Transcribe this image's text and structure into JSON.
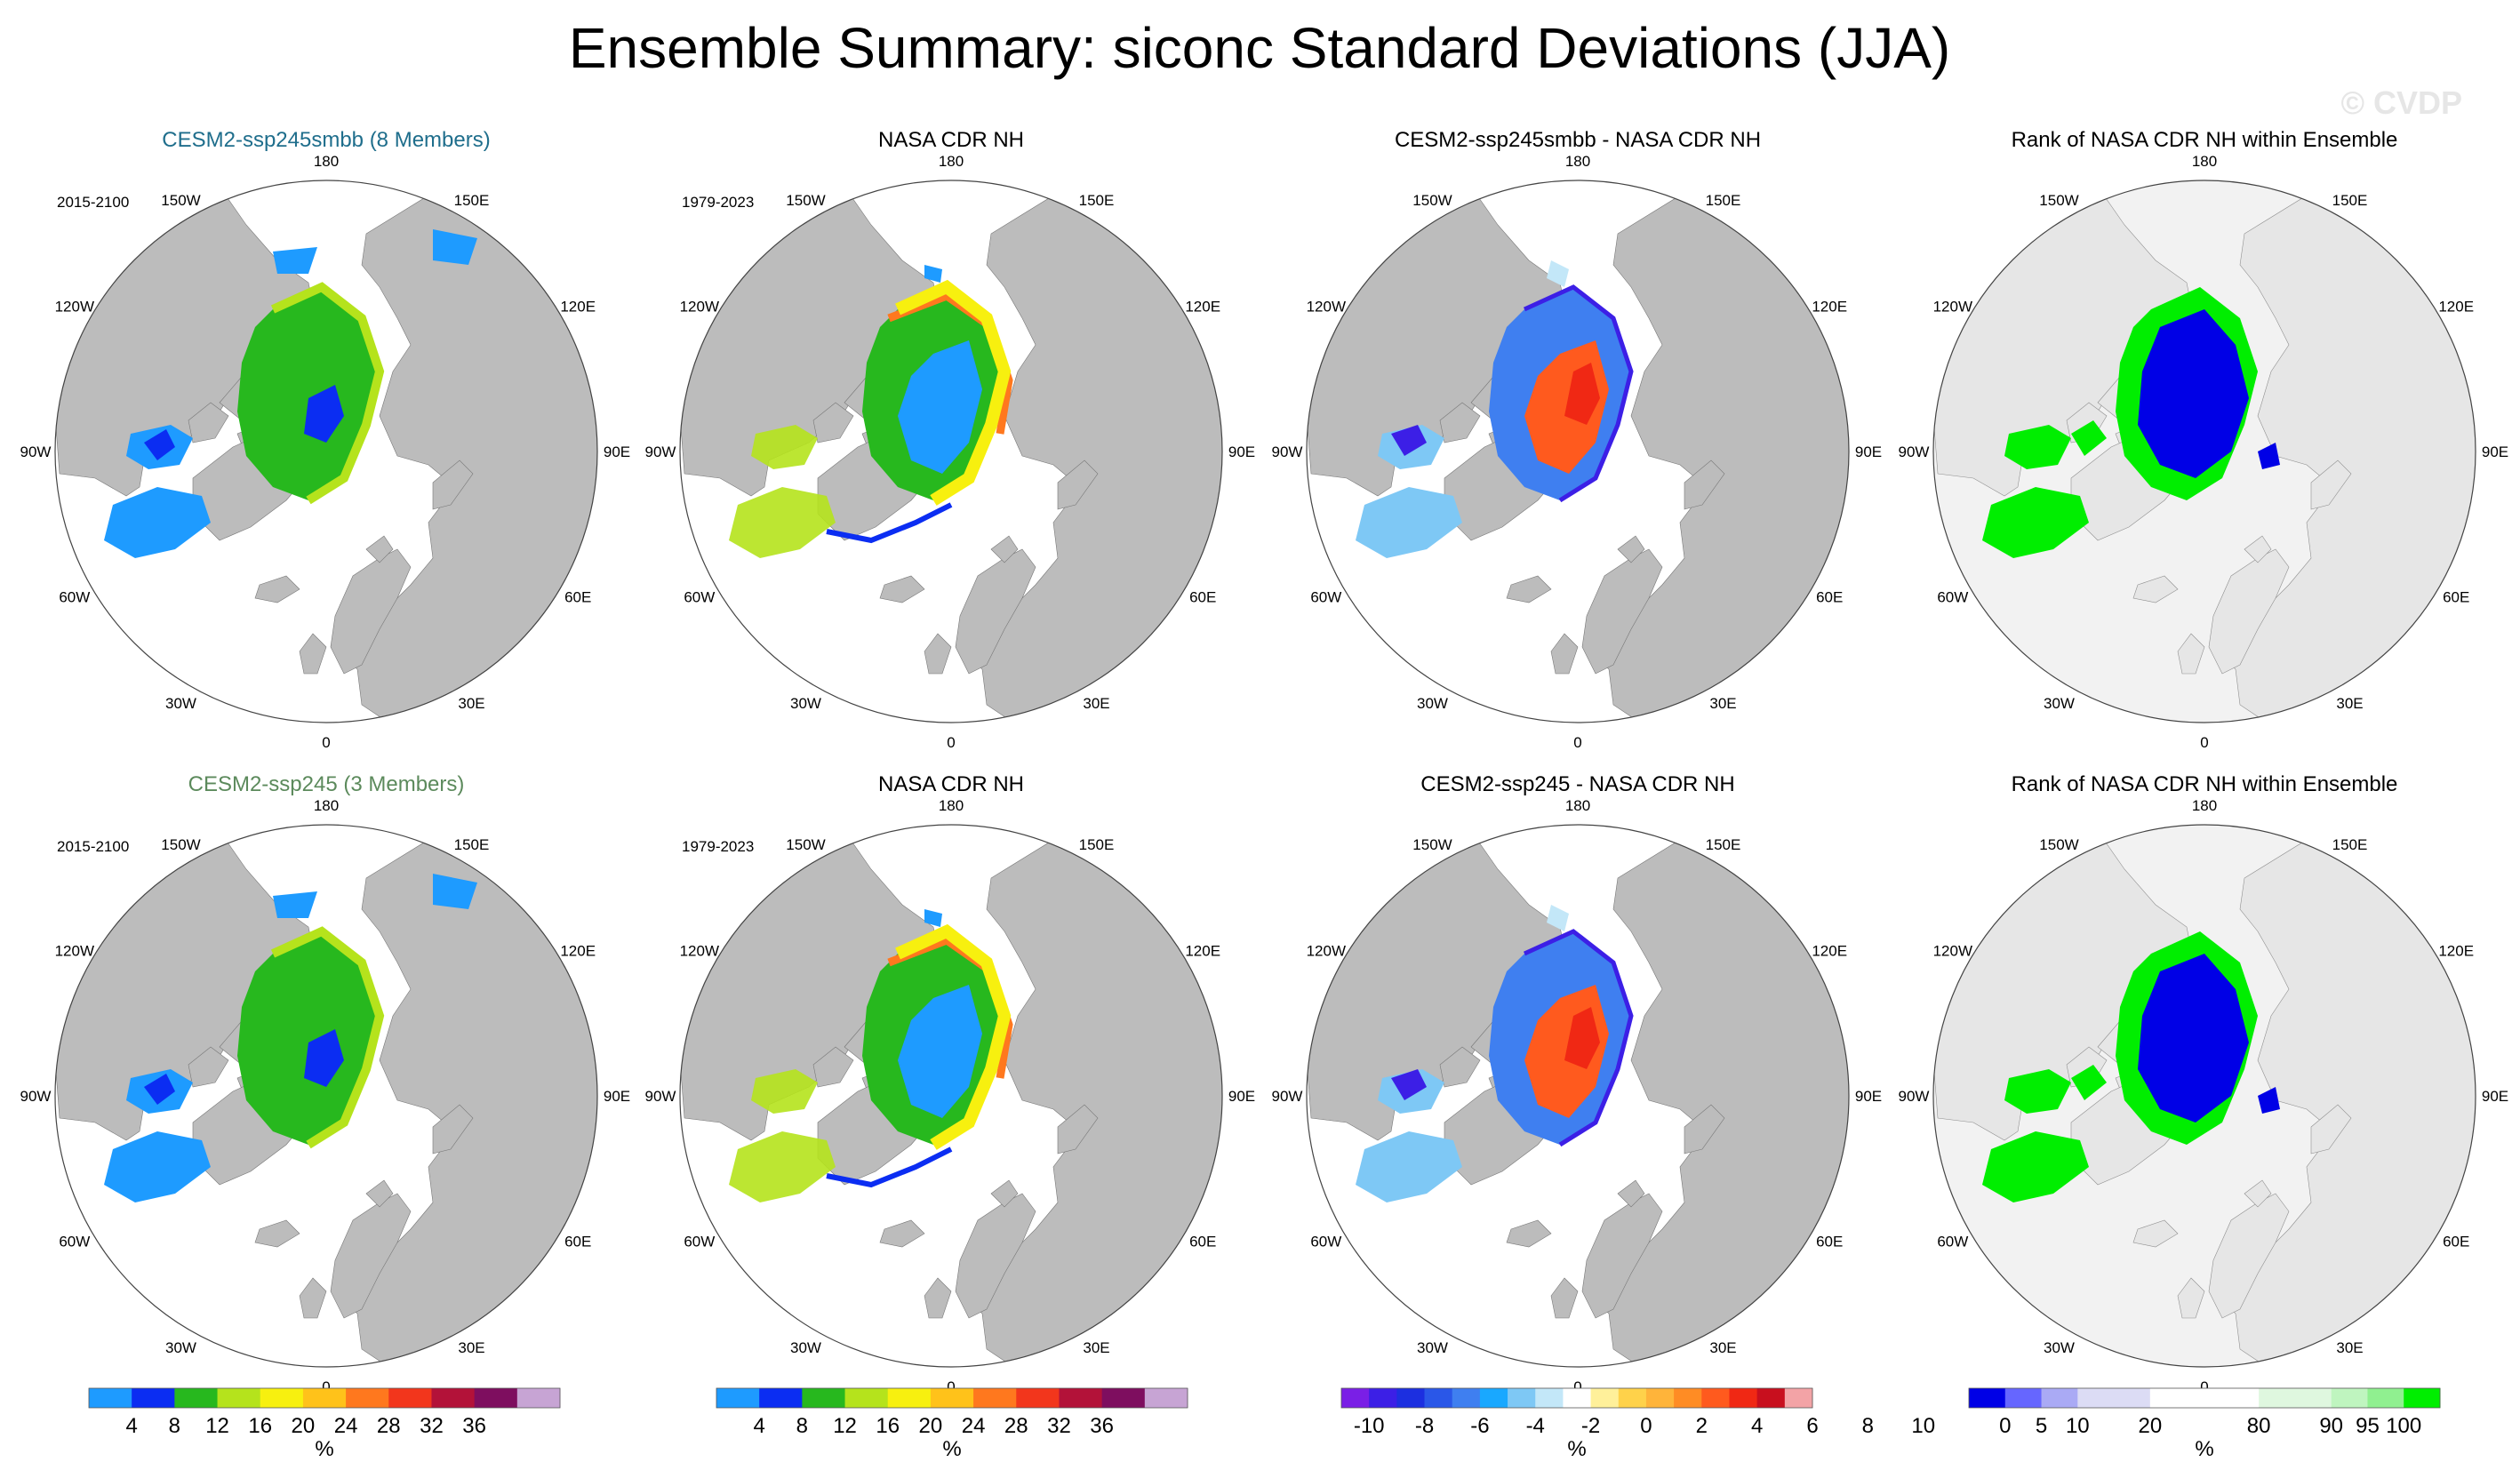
{
  "title": "Ensemble Summary: siconc Standard Deviations (JJA)",
  "watermark": "© CVDP",
  "colors": {
    "land": "#bcbcbc",
    "ocean": "#ffffff",
    "land_rank": "#e6e6e6",
    "ocean_rank": "#f2f2f2"
  },
  "lon_labels": [
    "180",
    "150E",
    "120E",
    "90E",
    "60E",
    "30E",
    "0",
    "30W",
    "60W",
    "90W",
    "120W",
    "150W"
  ],
  "rows": [
    {
      "panels": [
        {
          "kind": "std",
          "title": "CESM2-ssp245smbb (8 Members)",
          "title_color": "#1f6e8c",
          "period": "2015-2100"
        },
        {
          "kind": "std",
          "title": "NASA CDR NH",
          "title_color": "#000000",
          "period": "1979-2023",
          "obs": true
        },
        {
          "kind": "diff",
          "title": "CESM2-ssp245smbb - NASA CDR NH",
          "title_color": "#000000",
          "period": ""
        },
        {
          "kind": "rank",
          "title": "Rank of NASA CDR NH within Ensemble",
          "title_color": "#000000",
          "period": ""
        }
      ]
    },
    {
      "panels": [
        {
          "kind": "std",
          "title": "CESM2-ssp245 (3 Members)",
          "title_color": "#5c8a5c",
          "period": "2015-2100"
        },
        {
          "kind": "std",
          "title": "NASA CDR NH",
          "title_color": "#000000",
          "period": "1979-2023",
          "obs": true
        },
        {
          "kind": "diff",
          "title": "CESM2-ssp245 - NASA CDR NH",
          "title_color": "#000000",
          "period": ""
        },
        {
          "kind": "rank",
          "title": "Rank of NASA CDR NH within Ensemble",
          "title_color": "#000000",
          "period": ""
        }
      ]
    }
  ],
  "colorbars": [
    {
      "units": "%",
      "colors": [
        "#1e9bff",
        "#0b2df2",
        "#27b81e",
        "#b5e31c",
        "#f7f00f",
        "#ffc21a",
        "#ff781e",
        "#f2361c",
        "#b31239",
        "#7e0e5f",
        "#c7a4d4"
      ],
      "tick_labels": [
        "4",
        "8",
        "12",
        "16",
        "20",
        "24",
        "28",
        "32",
        "36"
      ]
    },
    {
      "units": "%",
      "colors": [
        "#1e9bff",
        "#0b2df2",
        "#27b81e",
        "#b5e31c",
        "#f7f00f",
        "#ffc21a",
        "#ff781e",
        "#f2361c",
        "#b31239",
        "#7e0e5f",
        "#c7a4d4"
      ],
      "tick_labels": [
        "4",
        "8",
        "12",
        "16",
        "20",
        "24",
        "28",
        "32",
        "36"
      ]
    },
    {
      "units": "%",
      "colors": [
        "#7a1fe6",
        "#3c1fe6",
        "#1c2fe0",
        "#2a57e8",
        "#3f7ff0",
        "#19a8ff",
        "#7ec8f5",
        "#c3e7f8",
        "#ffffff",
        "#fff09a",
        "#ffd24a",
        "#ffb43a",
        "#ff8c24",
        "#ff5a1e",
        "#f02814",
        "#c80f1e",
        "#f3a3a6"
      ],
      "tick_labels": [
        "-10",
        "-8",
        "-6",
        "-4",
        "-2",
        "0",
        "2",
        "4",
        "6",
        "8",
        "10"
      ]
    },
    {
      "units": "%",
      "colors": [
        "#0000e6",
        "#6666ff",
        "#aaaaf5",
        "#dcdcf5",
        "#dcdcf5",
        "#ffffff",
        "#ffffff",
        "#ffffff",
        "#dff7df",
        "#dff7df",
        "#bff5bf",
        "#90f090",
        "#00ee00"
      ],
      "tick_labels": [
        "0",
        "5",
        "10",
        "20",
        "80",
        "90",
        "95",
        "100"
      ]
    }
  ]
}
